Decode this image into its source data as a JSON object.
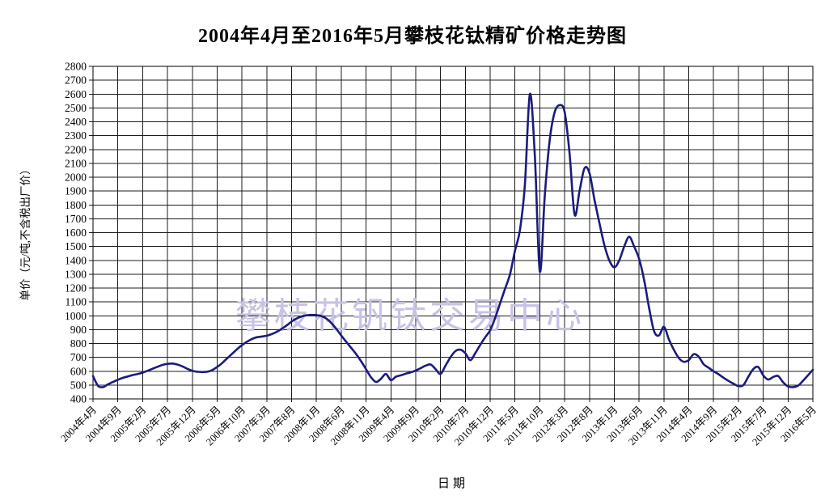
{
  "watermark": {
    "text": "攀枝花钒钛交易中心",
    "color": "#c8c2e4"
  },
  "chart_data": {
    "type": "line",
    "title": "2004年4月至2016年5月攀枝花钛精矿价格走势图",
    "xlabel": "日期",
    "ylabel": "单价（元/吨,不含税出厂价）",
    "ylim": [
      400,
      2800
    ],
    "y_tick_step": 100,
    "grid": true,
    "legend_position": "none",
    "line_color": "#1b1b7e",
    "y_tick_labels": [
      "2800",
      "2700",
      "2600",
      "2500",
      "2400",
      "2300",
      "2200",
      "2100",
      "2000",
      "1900",
      "1800",
      "1700",
      "1600",
      "1500",
      "1400",
      "1300",
      "1200",
      "1100",
      "1000",
      "900",
      "800",
      "700",
      "600",
      "500",
      "400"
    ],
    "x_tick_labels": [
      "2004年4月",
      "2004年9月",
      "2005年2月",
      "2005年7月",
      "2005年12月",
      "2006年5月",
      "2006年10月",
      "2007年3月",
      "2007年8月",
      "2008年1月",
      "2008年6月",
      "2008年11月",
      "2009年4月",
      "2009年9月",
      "2010年2月",
      "2010年7月",
      "2010年12月",
      "2011年5月",
      "2011年10月",
      "2012年3月",
      "2012年8月",
      "2013年1月",
      "2013年6月",
      "2013年11月",
      "2014年4月",
      "2014年9月",
      "2015年2月",
      "2015年7月",
      "2015年12月",
      "2016年5月"
    ],
    "x_tick_interval_months": 5,
    "x_start": "2004年4月",
    "x_end": "2016年5月",
    "monthly_values": [
      565,
      495,
      485,
      505,
      522,
      538,
      552,
      562,
      572,
      580,
      590,
      603,
      618,
      632,
      645,
      653,
      655,
      648,
      635,
      617,
      603,
      596,
      594,
      596,
      608,
      630,
      658,
      692,
      725,
      758,
      788,
      812,
      832,
      845,
      850,
      856,
      868,
      884,
      905,
      930,
      958,
      980,
      995,
      1003,
      1006,
      1005,
      998,
      980,
      948,
      905,
      858,
      812,
      768,
      723,
      672,
      614,
      556,
      522,
      545,
      580,
      535,
      560,
      570,
      582,
      592,
      605,
      622,
      640,
      648,
      615,
      580,
      640,
      700,
      745,
      755,
      730,
      680,
      730,
      790,
      845,
      895,
      985,
      1090,
      1195,
      1300,
      1470,
      1620,
      1950,
      2600,
      2150,
      1320,
      1870,
      2270,
      2470,
      2520,
      2470,
      2170,
      1730,
      1900,
      2065,
      2030,
      1840,
      1670,
      1510,
      1400,
      1350,
      1400,
      1500,
      1570,
      1500,
      1410,
      1260,
      1060,
      890,
      858,
      920,
      830,
      755,
      695,
      668,
      680,
      723,
      705,
      650,
      625,
      600,
      578,
      553,
      530,
      510,
      493,
      500,
      560,
      615,
      630,
      570,
      540,
      558,
      565,
      520,
      490,
      485,
      495,
      530,
      570,
      610
    ]
  }
}
